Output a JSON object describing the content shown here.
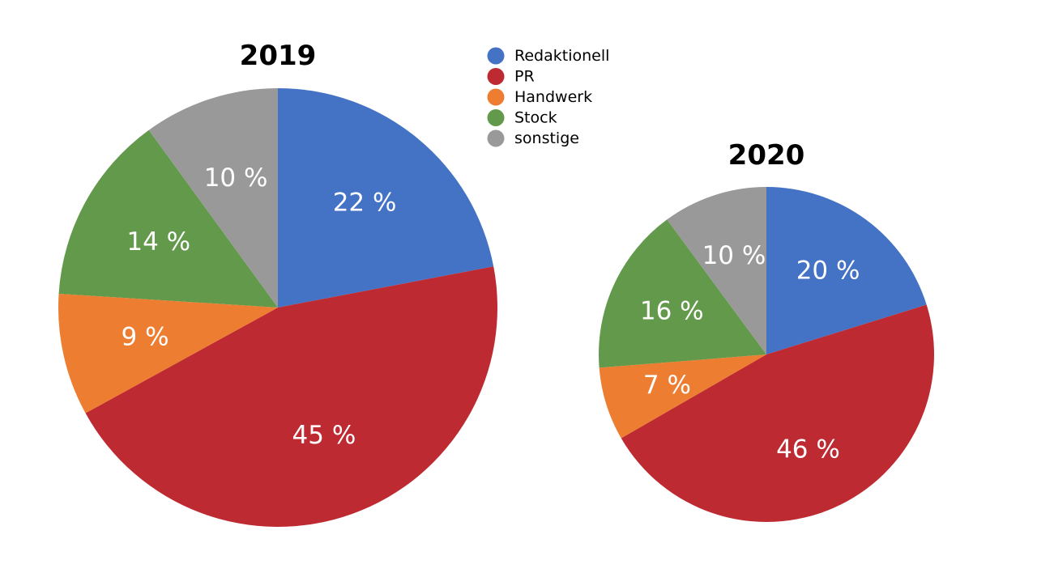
{
  "chart_data": [
    {
      "type": "pie",
      "title": "2019",
      "categories": [
        "Redaktionell",
        "PR",
        "Handwerk",
        "Stock",
        "sonstige"
      ],
      "values": [
        22,
        45,
        9,
        14,
        10
      ],
      "labels": [
        "22 %",
        "45 %",
        "9 %",
        "14 %",
        "10 %"
      ]
    },
    {
      "type": "pie",
      "title": "2020",
      "categories": [
        "Redaktionell",
        "PR",
        "Handwerk",
        "Stock",
        "sonstige"
      ],
      "values": [
        20,
        46,
        7,
        16,
        10
      ],
      "labels": [
        "20 %",
        "46 %",
        "7 %",
        "16 %",
        "10 %"
      ]
    }
  ],
  "legend": {
    "placement": "top-center",
    "items": [
      {
        "label": "Redaktionell",
        "color": "#4472c4"
      },
      {
        "label": "PR",
        "color": "#be2a31"
      },
      {
        "label": "Handwerk",
        "color": "#ed7d31"
      },
      {
        "label": "Stock",
        "color": "#62994a"
      },
      {
        "label": "sonstige",
        "color": "#999999"
      }
    ]
  }
}
